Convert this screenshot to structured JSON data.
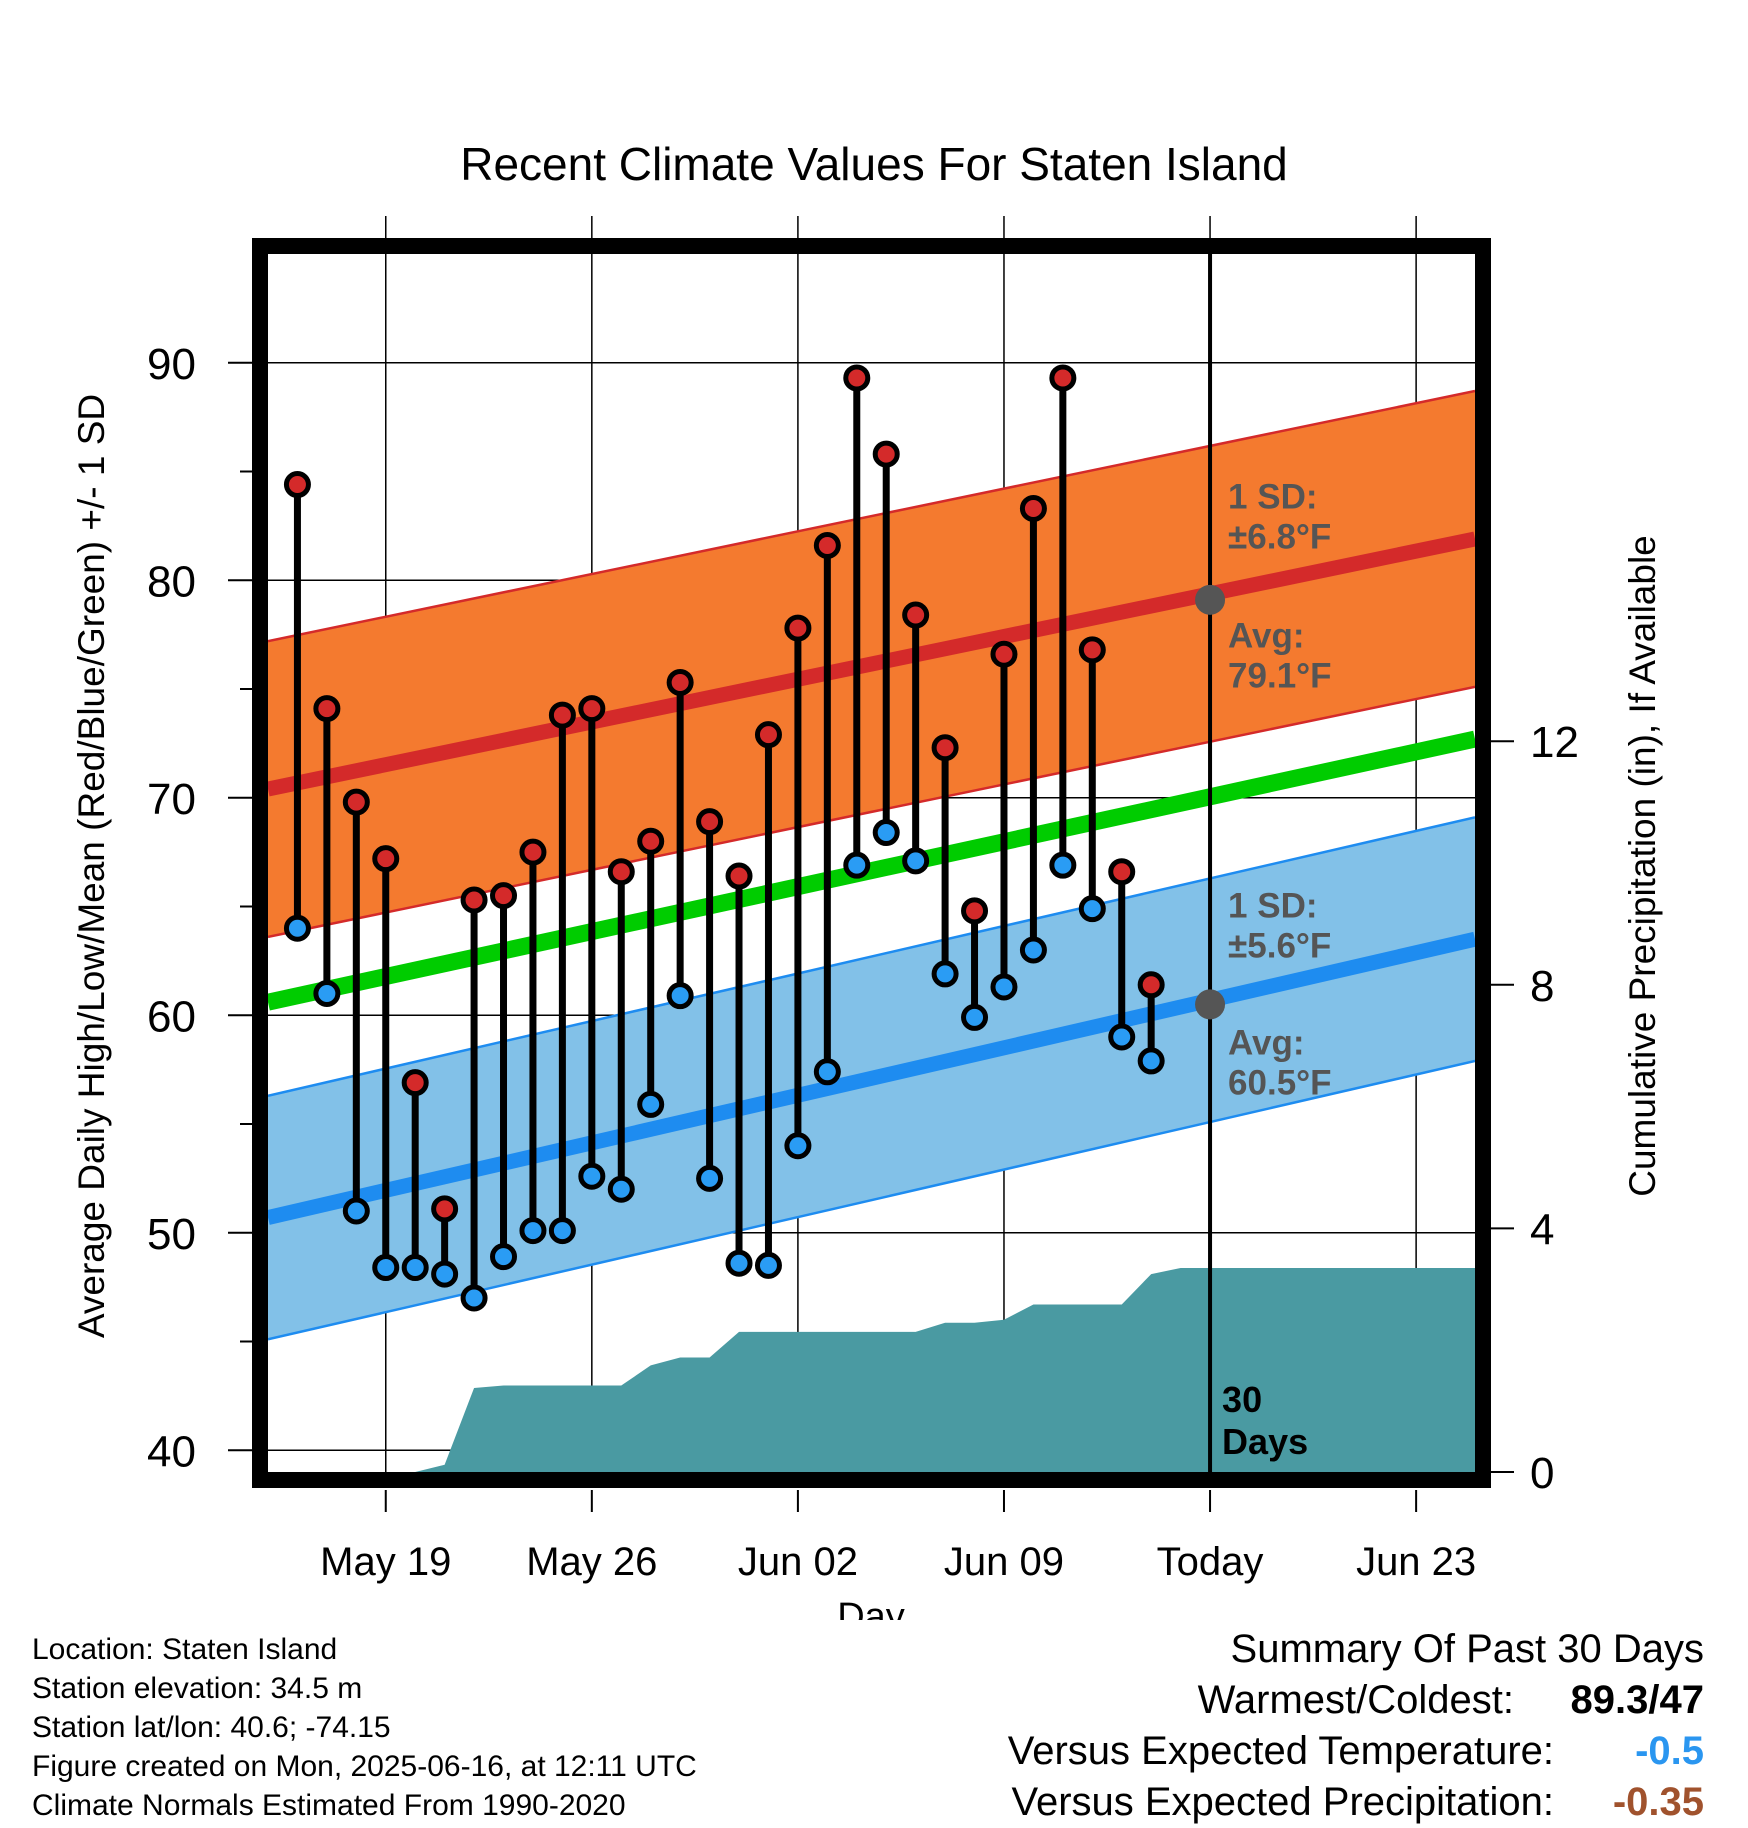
{
  "chart_data": {
    "type": "line",
    "title": "Recent Climate Values For Staten Island",
    "xlabel": "Day",
    "ylabel": "Average Daily High/Low/Mean (Red/Blue/Green) +/- 1 SD",
    "y2label": "Cumulative Precipitation (in), If Available",
    "ylim": [
      39,
      95
    ],
    "y2lim": [
      0,
      20
    ],
    "yticks": [
      40,
      50,
      60,
      70,
      80,
      90
    ],
    "y2ticks": [
      0,
      4,
      8,
      12
    ],
    "xlim": [
      "2025-05-15",
      "2025-06-25"
    ],
    "xtick_dates": [
      "2025-05-19",
      "2025-05-26",
      "2025-06-02",
      "2025-06-09",
      "2025-06-16",
      "2025-06-23"
    ],
    "xticks": [
      "May 19",
      "May 26",
      "Jun 02",
      "Jun 09",
      "Today",
      "Jun 23"
    ],
    "today": "2025-06-16",
    "grid": true,
    "days": [
      "2025-05-16",
      "2025-05-17",
      "2025-05-18",
      "2025-05-19",
      "2025-05-20",
      "2025-05-21",
      "2025-05-22",
      "2025-05-23",
      "2025-05-24",
      "2025-05-25",
      "2025-05-26",
      "2025-05-27",
      "2025-05-28",
      "2025-05-29",
      "2025-05-30",
      "2025-05-31",
      "2025-06-01",
      "2025-06-02",
      "2025-06-03",
      "2025-06-04",
      "2025-06-05",
      "2025-06-06",
      "2025-06-07",
      "2025-06-08",
      "2025-06-09",
      "2025-06-10",
      "2025-06-11",
      "2025-06-12",
      "2025-06-13",
      "2025-06-14",
      "2025-06-15"
    ],
    "daily_high": [
      84.4,
      74.1,
      69.8,
      67.2,
      56.9,
      51.1,
      65.3,
      65.5,
      67.5,
      73.8,
      74.1,
      66.6,
      68.0,
      75.3,
      68.9,
      66.4,
      72.9,
      77.8,
      81.6,
      89.3,
      85.8,
      78.4,
      72.3,
      64.8,
      76.6,
      83.3,
      89.3,
      76.8,
      66.6,
      61.4,
      null
    ],
    "daily_low": [
      64.0,
      61.0,
      51.0,
      48.4,
      48.4,
      48.1,
      47.0,
      48.9,
      50.1,
      50.1,
      52.6,
      52.0,
      55.9,
      60.9,
      52.5,
      48.6,
      48.5,
      54.0,
      57.4,
      66.9,
      68.4,
      67.1,
      61.9,
      59.9,
      61.3,
      63.0,
      66.9,
      64.9,
      59.0,
      57.9,
      null
    ],
    "normal_band_dates": [
      "2025-05-15",
      "2025-06-25"
    ],
    "normal_high": [
      70.4,
      81.9
    ],
    "normal_high_sd": 6.8,
    "normal_low": [
      50.7,
      63.5
    ],
    "normal_low_sd": 5.6,
    "normal_mean": [
      60.6,
      72.7
    ],
    "cumulative_precip": [
      0,
      0,
      0,
      0,
      0,
      0.12,
      1.38,
      1.42,
      1.42,
      1.42,
      1.42,
      1.42,
      1.75,
      1.88,
      1.88,
      2.3,
      2.3,
      2.3,
      2.3,
      2.3,
      2.3,
      2.3,
      2.45,
      2.45,
      2.5,
      2.75,
      2.75,
      2.75,
      2.75,
      3.25,
      3.35
    ],
    "annotations": {
      "high_sd_label": [
        "1 SD:",
        "±6.8°F"
      ],
      "high_avg_label": [
        "Avg:",
        "79.1°F"
      ],
      "low_sd_label": [
        "1 SD:",
        "±5.6°F"
      ],
      "low_avg_label": [
        "Avg:",
        "60.5°F"
      ],
      "high_avg_today": 79.1,
      "low_avg_today": 60.5,
      "window_label": [
        "30",
        "Days"
      ]
    },
    "colors": {
      "high_band": "#f47a2f",
      "high_line": "#d42a2a",
      "high_marker": "#d42a2a",
      "low_band": "#82c1e8",
      "low_line": "#1e8cf0",
      "low_marker": "#2a9cf4",
      "mean_line": "#00cc00",
      "precip_fill": "#4a9aa2",
      "avg_dot": "#555555",
      "annotation_text": "#555555"
    }
  },
  "info": {
    "location": "Location: Staten Island",
    "elevation": "Station elevation: 34.5 m",
    "latlon": "Station lat/lon: 40.6; -74.15",
    "created": "Figure created on Mon, 2025-06-16, at 12:11 UTC",
    "normals": "Climate Normals Estimated From 1990-2020"
  },
  "summary": {
    "title": "Summary Of Past 30 Days",
    "warmest_label": "Warmest/Coldest:",
    "warmest_value": "89.3",
    "slash": "/",
    "coldest_value": "47",
    "temp_label": "Versus Expected Temperature:",
    "temp_value": "-0.5",
    "temp_color": "#2a96f0",
    "precip_label": "Versus Expected Precipitation:",
    "precip_value": "-0.35",
    "precip_color": "#a0522d"
  }
}
